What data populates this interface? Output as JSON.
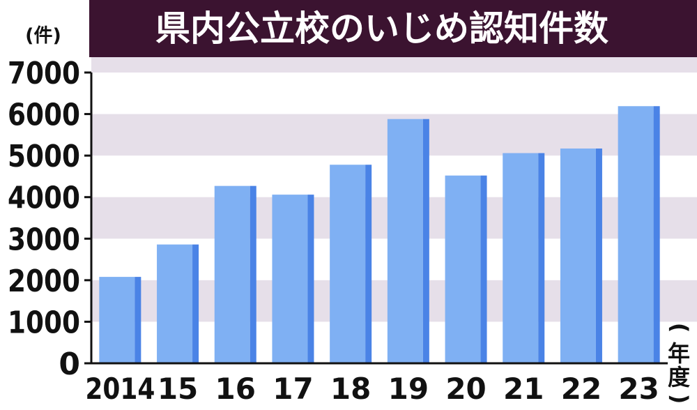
{
  "chart_data": {
    "type": "bar",
    "title": "県内公立校のいじめ認知件数",
    "ylabel": "(件)",
    "xlabel": "(年度)",
    "categories": [
      "2014",
      "15",
      "16",
      "17",
      "18",
      "19",
      "20",
      "21",
      "22",
      "23"
    ],
    "values": [
      2080,
      2860,
      4270,
      4060,
      4780,
      5880,
      4520,
      5060,
      5170,
      6190
    ],
    "ylim": [
      0,
      7000
    ],
    "yticks": [
      "0",
      "1000",
      "2000",
      "3000",
      "4000",
      "5000",
      "6000",
      "7000"
    ],
    "grid": "alternating horizontal bands",
    "colors": {
      "title_bg": "#3b1330",
      "band": "#e6dfe9",
      "bar": "#7fb0f3",
      "bar_side": "#4a83e6",
      "axis": "#111111"
    }
  }
}
